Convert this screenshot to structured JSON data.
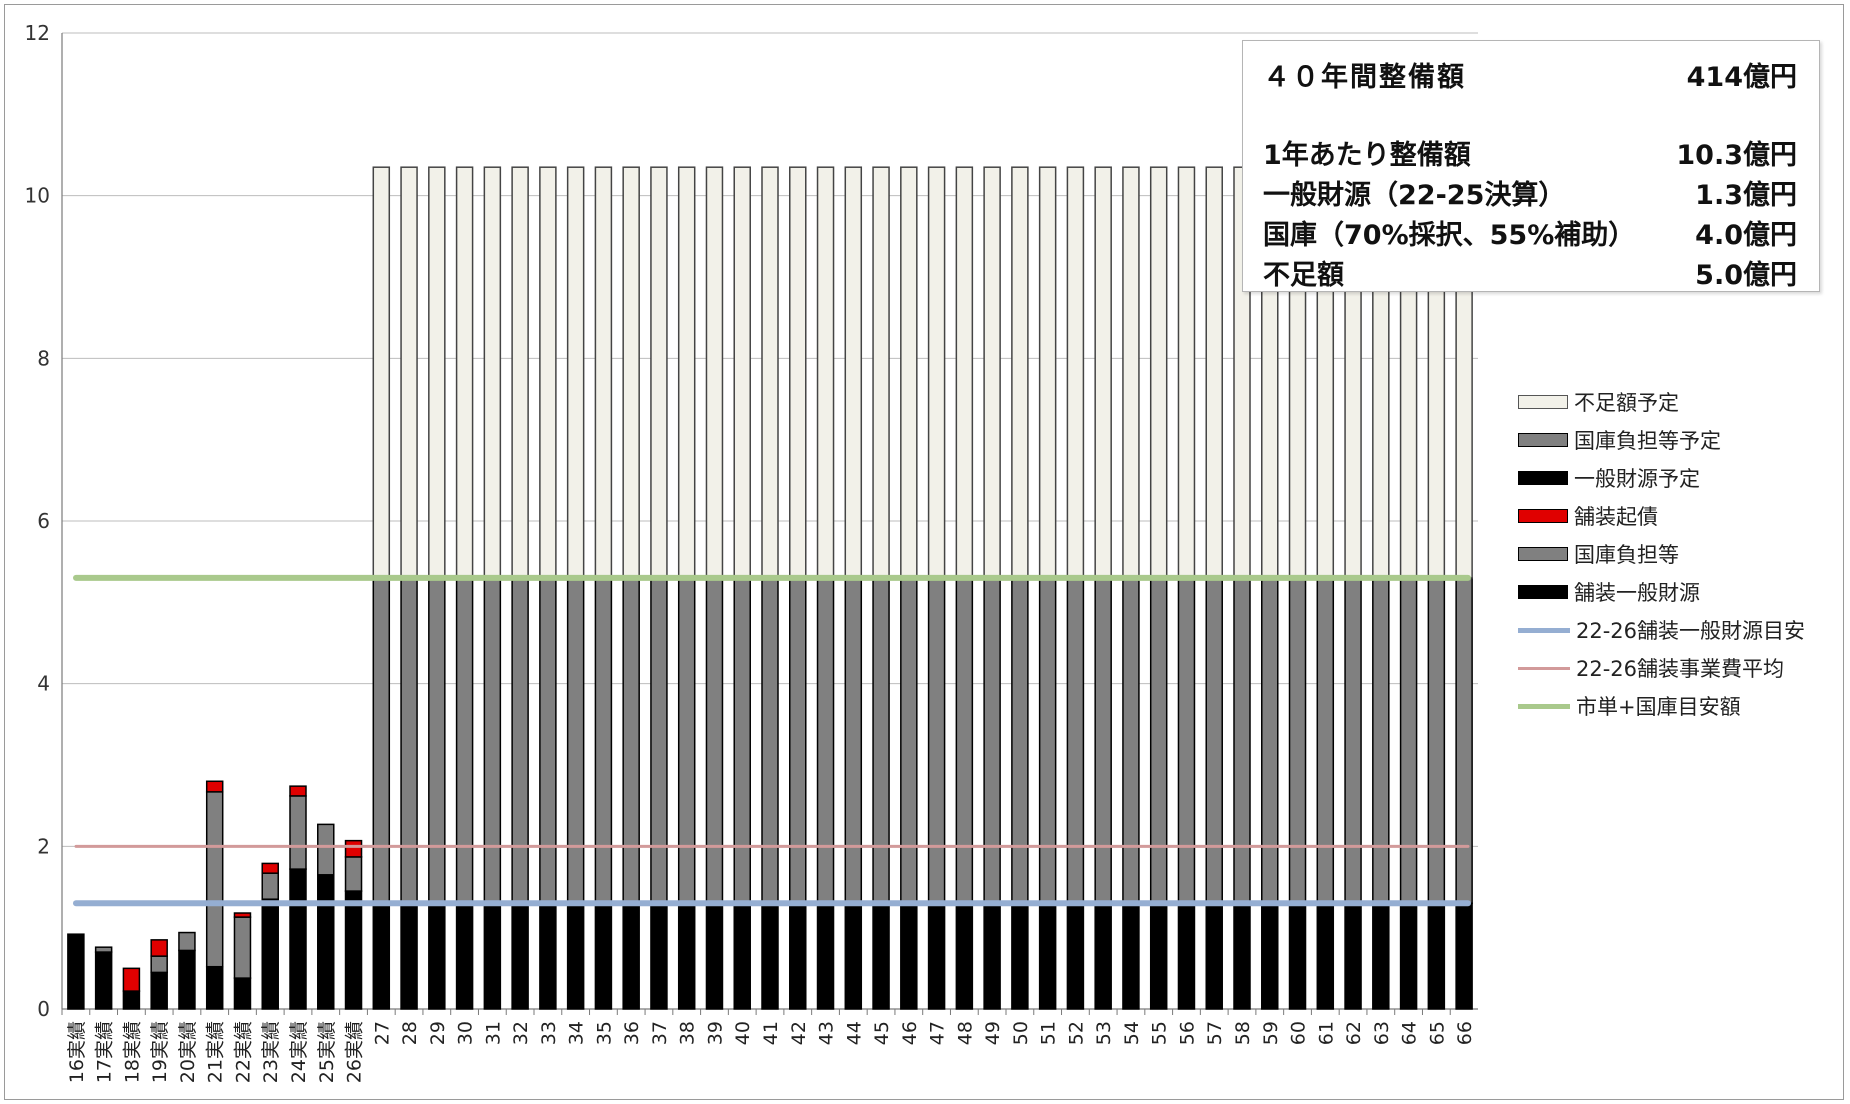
{
  "chart_data": {
    "type": "bar",
    "stacked": true,
    "categories": [
      "16実績",
      "17実績",
      "18実績",
      "19実績",
      "20実績",
      "21実績",
      "22実績",
      "23実績",
      "24実績",
      "25実績",
      "26実績",
      "27",
      "28",
      "29",
      "30",
      "31",
      "32",
      "33",
      "34",
      "35",
      "36",
      "37",
      "38",
      "39",
      "40",
      "41",
      "42",
      "43",
      "44",
      "45",
      "46",
      "47",
      "48",
      "49",
      "50",
      "51",
      "52",
      "53",
      "54",
      "55",
      "56",
      "57",
      "58",
      "59",
      "60",
      "61",
      "62",
      "63",
      "64",
      "65",
      "66"
    ],
    "ylim": [
      0,
      12
    ],
    "yticks": [
      "0",
      "2",
      "4",
      "6",
      "8",
      "10",
      "12"
    ],
    "grid": true,
    "legend_position": "right",
    "series": [
      {
        "name": "舗装一般財源",
        "color": "#000000",
        "values": [
          0.92,
          0.7,
          0.22,
          0.45,
          0.72,
          0.52,
          0.38,
          1.35,
          1.72,
          1.65,
          1.45,
          0,
          0,
          0,
          0,
          0,
          0,
          0,
          0,
          0,
          0,
          0,
          0,
          0,
          0,
          0,
          0,
          0,
          0,
          0,
          0,
          0,
          0,
          0,
          0,
          0,
          0,
          0,
          0,
          0,
          0,
          0,
          0,
          0,
          0,
          0,
          0,
          0,
          0,
          0,
          0
        ]
      },
      {
        "name": "国庫負担等",
        "color": "#808080",
        "values": [
          0,
          0.06,
          0,
          0.2,
          0.22,
          2.15,
          0.75,
          0.32,
          0.9,
          0.62,
          0.42,
          0,
          0,
          0,
          0,
          0,
          0,
          0,
          0,
          0,
          0,
          0,
          0,
          0,
          0,
          0,
          0,
          0,
          0,
          0,
          0,
          0,
          0,
          0,
          0,
          0,
          0,
          0,
          0,
          0,
          0,
          0,
          0,
          0,
          0,
          0,
          0,
          0,
          0,
          0,
          0
        ]
      },
      {
        "name": "舗装起債",
        "color": "#e00000",
        "values": [
          0,
          0,
          0.28,
          0.2,
          0,
          0.13,
          0.05,
          0.12,
          0.12,
          0,
          0.2,
          0,
          0,
          0,
          0,
          0,
          0,
          0,
          0,
          0,
          0,
          0,
          0,
          0,
          0,
          0,
          0,
          0,
          0,
          0,
          0,
          0,
          0,
          0,
          0,
          0,
          0,
          0,
          0,
          0,
          0,
          0,
          0,
          0,
          0,
          0,
          0,
          0,
          0,
          0,
          0
        ]
      },
      {
        "name": "一般財源予定",
        "color": "#000000",
        "values": [
          0,
          0,
          0,
          0,
          0,
          0,
          0,
          0,
          0,
          0,
          0,
          1.3,
          1.3,
          1.3,
          1.3,
          1.3,
          1.3,
          1.3,
          1.3,
          1.3,
          1.3,
          1.3,
          1.3,
          1.3,
          1.3,
          1.3,
          1.3,
          1.3,
          1.3,
          1.3,
          1.3,
          1.3,
          1.3,
          1.3,
          1.3,
          1.3,
          1.3,
          1.3,
          1.3,
          1.3,
          1.3,
          1.3,
          1.3,
          1.3,
          1.3,
          1.3,
          1.3,
          1.3,
          1.3,
          1.3,
          1.3
        ]
      },
      {
        "name": "国庫負担等予定",
        "color": "#808080",
        "values": [
          0,
          0,
          0,
          0,
          0,
          0,
          0,
          0,
          0,
          0,
          0,
          4.0,
          4.0,
          4.0,
          4.0,
          4.0,
          4.0,
          4.0,
          4.0,
          4.0,
          4.0,
          4.0,
          4.0,
          4.0,
          4.0,
          4.0,
          4.0,
          4.0,
          4.0,
          4.0,
          4.0,
          4.0,
          4.0,
          4.0,
          4.0,
          4.0,
          4.0,
          4.0,
          4.0,
          4.0,
          4.0,
          4.0,
          4.0,
          4.0,
          4.0,
          4.0,
          4.0,
          4.0,
          4.0,
          4.0,
          4.0
        ]
      },
      {
        "name": "不足額予定",
        "color": "#f2f1e9",
        "values": [
          0,
          0,
          0,
          0,
          0,
          0,
          0,
          0,
          0,
          0,
          0,
          5.05,
          5.05,
          5.05,
          5.05,
          5.05,
          5.05,
          5.05,
          5.05,
          5.05,
          5.05,
          5.05,
          5.05,
          5.05,
          5.05,
          5.05,
          5.05,
          5.05,
          5.05,
          5.05,
          5.05,
          5.05,
          5.05,
          5.05,
          5.05,
          5.05,
          5.05,
          5.05,
          5.05,
          5.05,
          5.05,
          5.05,
          5.05,
          5.05,
          5.05,
          5.05,
          5.05,
          5.05,
          5.05,
          5.05,
          5.05
        ]
      }
    ],
    "reference_lines": [
      {
        "name": "22-26舗装一般財源目安",
        "value": 1.3,
        "color": "#95aed2"
      },
      {
        "name": "22-26舗装事業費平均",
        "value": 2.0,
        "color": "#d29a9a"
      },
      {
        "name": "市単+国庫目安額",
        "value": 5.3,
        "color": "#a9c98c"
      }
    ],
    "legend_order": [
      "不足額予定",
      "国庫負担等予定",
      "一般財源予定",
      "舗装起債",
      "国庫負担等",
      "舗装一般財源",
      "22-26舗装一般財源目安",
      "22-26舗装事業費平均",
      "市単+国庫目安額"
    ]
  },
  "summary": {
    "rows": [
      {
        "label": "４０年間整備額",
        "value": "414億円"
      },
      {
        "label": "1年あたり整備額",
        "value": "10.3億円"
      },
      {
        "label": "一般財源（22-25決算）",
        "value": "1.3億円"
      },
      {
        "label": "国庫（70%採択、55%補助）",
        "value": "4.0億円"
      },
      {
        "label": "不足額",
        "value": "5.0億円"
      }
    ]
  }
}
